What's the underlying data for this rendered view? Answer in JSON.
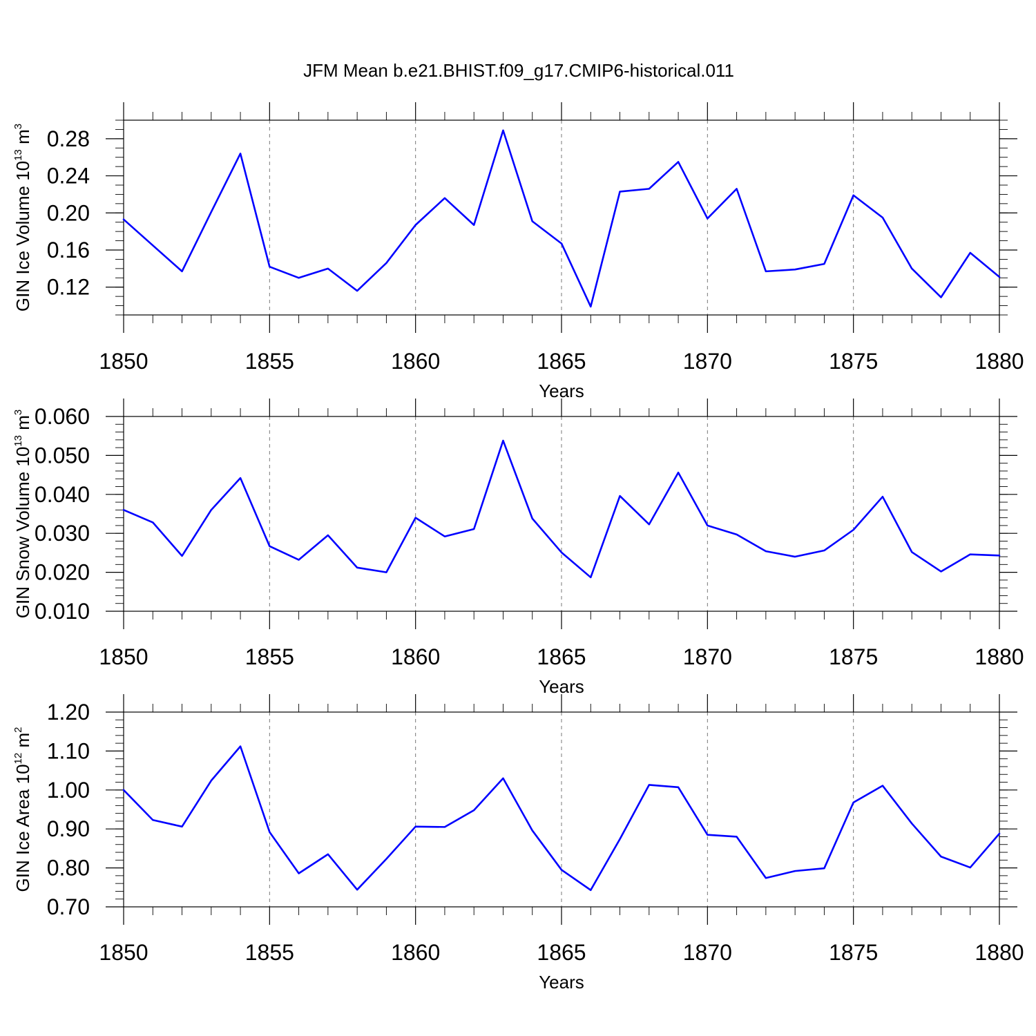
{
  "title": "JFM Mean b.e21.BHIST.f09_g17.CMIP6-historical.011",
  "line_color": "#0000ff",
  "chart_data": [
    {
      "type": "line",
      "xlabel": "Years",
      "ylabel": "GIN Ice Volume 10",
      "ylabel_exp": "13",
      "ylabel_unit": " m",
      "ylabel_unit_exp": "3",
      "xlim": [
        1850,
        1880
      ],
      "ylim": [
        0.09,
        0.3
      ],
      "x_ticks": [
        1850,
        1855,
        1860,
        1865,
        1870,
        1875,
        1880
      ],
      "x_tick_labels": [
        "1850",
        "1855",
        "1860",
        "1865",
        "1870",
        "1875",
        "1880"
      ],
      "y_ticks": [
        0.12,
        0.16,
        0.2,
        0.24,
        0.28
      ],
      "y_tick_labels": [
        "0.12",
        "0.16",
        "0.20",
        "0.24",
        "0.28"
      ],
      "y_minor_step": 0.01,
      "grid": "dashed vertical at major x ticks",
      "x": [
        1850,
        1851,
        1852,
        1853,
        1854,
        1855,
        1856,
        1857,
        1858,
        1859,
        1860,
        1861,
        1862,
        1863,
        1864,
        1865,
        1866,
        1867,
        1868,
        1869,
        1870,
        1871,
        1872,
        1873,
        1874,
        1875,
        1876,
        1877,
        1878,
        1879,
        1880
      ],
      "series": [
        {
          "values": [
            0.193,
            0.165,
            0.137,
            0.201,
            0.264,
            0.142,
            0.13,
            0.14,
            0.116,
            0.146,
            0.187,
            0.216,
            0.187,
            0.289,
            0.191,
            0.167,
            0.099,
            0.223,
            0.226,
            0.255,
            0.194,
            0.226,
            0.137,
            0.139,
            0.145,
            0.219,
            0.195,
            0.14,
            0.109,
            0.157,
            0.131
          ]
        }
      ]
    },
    {
      "type": "line",
      "xlabel": "Years",
      "ylabel": "GIN Snow Volume 10",
      "ylabel_exp": "13",
      "ylabel_unit": " m",
      "ylabel_unit_exp": "3",
      "xlim": [
        1850,
        1880
      ],
      "ylim": [
        0.01,
        0.06
      ],
      "x_ticks": [
        1850,
        1855,
        1860,
        1865,
        1870,
        1875,
        1880
      ],
      "x_tick_labels": [
        "1850",
        "1855",
        "1860",
        "1865",
        "1870",
        "1875",
        "1880"
      ],
      "y_ticks": [
        0.01,
        0.02,
        0.03,
        0.04,
        0.05,
        0.06
      ],
      "y_tick_labels": [
        "0.010",
        "0.020",
        "0.030",
        "0.040",
        "0.050",
        "0.060"
      ],
      "y_minor_step": 0.002,
      "grid": "dashed vertical at major x ticks",
      "x": [
        1850,
        1851,
        1852,
        1853,
        1854,
        1855,
        1856,
        1857,
        1858,
        1859,
        1860,
        1861,
        1862,
        1863,
        1864,
        1865,
        1866,
        1867,
        1868,
        1869,
        1870,
        1871,
        1872,
        1873,
        1874,
        1875,
        1876,
        1877,
        1878,
        1879,
        1880
      ],
      "series": [
        {
          "values": [
            0.036,
            0.0328,
            0.0242,
            0.036,
            0.0442,
            0.0267,
            0.0232,
            0.0295,
            0.0212,
            0.02,
            0.034,
            0.0292,
            0.0311,
            0.0538,
            0.0338,
            0.0251,
            0.0187,
            0.0396,
            0.0323,
            0.0456,
            0.032,
            0.0297,
            0.0254,
            0.024,
            0.0256,
            0.0309,
            0.0394,
            0.0252,
            0.0202,
            0.0246,
            0.0243
          ]
        }
      ]
    },
    {
      "type": "line",
      "xlabel": "Years",
      "ylabel": "GIN Ice Area 10",
      "ylabel_exp": "12",
      "ylabel_unit": " m",
      "ylabel_unit_exp": "2",
      "xlim": [
        1850,
        1880
      ],
      "ylim": [
        0.7,
        1.2
      ],
      "x_ticks": [
        1850,
        1855,
        1860,
        1865,
        1870,
        1875,
        1880
      ],
      "x_tick_labels": [
        "1850",
        "1855",
        "1860",
        "1865",
        "1870",
        "1875",
        "1880"
      ],
      "y_ticks": [
        0.7,
        0.8,
        0.9,
        1.0,
        1.1,
        1.2
      ],
      "y_tick_labels": [
        "0.70",
        "0.80",
        "0.90",
        "1.00",
        "1.10",
        "1.20"
      ],
      "y_minor_step": 0.02,
      "grid": "dashed vertical at major x ticks",
      "x": [
        1850,
        1851,
        1852,
        1853,
        1854,
        1855,
        1856,
        1857,
        1858,
        1859,
        1860,
        1861,
        1862,
        1863,
        1864,
        1865,
        1866,
        1867,
        1868,
        1869,
        1870,
        1871,
        1872,
        1873,
        1874,
        1875,
        1876,
        1877,
        1878,
        1879,
        1880
      ],
      "series": [
        {
          "values": [
            1.0,
            0.923,
            0.906,
            1.024,
            1.112,
            0.892,
            0.786,
            0.835,
            0.744,
            0.823,
            0.906,
            0.905,
            0.948,
            1.03,
            0.896,
            0.795,
            0.743,
            0.874,
            1.013,
            1.007,
            0.885,
            0.88,
            0.774,
            0.792,
            0.799,
            0.968,
            1.011,
            0.914,
            0.829,
            0.801,
            0.888
          ]
        }
      ]
    }
  ]
}
